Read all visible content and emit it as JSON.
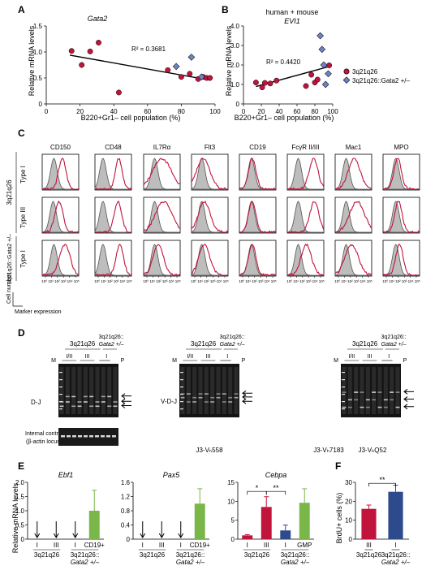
{
  "colors": {
    "red": "#c0143c",
    "blue": "#2c4a8c",
    "green": "#7ab648",
    "gray": "#999999",
    "diamond_blue": "#6d84c4"
  },
  "panelA": {
    "label": "A",
    "title": "Gata2",
    "r2": "R² = 0.3681",
    "ylabel": "Relative mRNA levels",
    "xlabel": "B220+Gr1– cell population (%)",
    "yticks": [
      "0",
      "0.5",
      "1.0",
      "1.5"
    ],
    "xticks": [
      "0",
      "20",
      "40",
      "60",
      "80",
      "100"
    ]
  },
  "panelB": {
    "label": "B",
    "title1": "human + mouse",
    "title2": "EVI1",
    "r2": "R² = 0.4420",
    "ylabel": "Relative mRNA levels",
    "xlabel": "B220+Gr1– cell population (%)",
    "yticks": [
      "0",
      "1.0",
      "2.0",
      "3.0",
      "4.0"
    ],
    "xticks": [
      "0",
      "20",
      "40",
      "60",
      "80",
      "100"
    ],
    "legend": [
      "3q21q26",
      "3q21q26::Gata2 +/–"
    ]
  },
  "panelC": {
    "label": "C",
    "markers": [
      "CD150",
      "CD48",
      "IL7Rα",
      "Flt3",
      "CD19",
      "FcγR II/III",
      "Mac1",
      "MPO"
    ],
    "group1": "3q21q26",
    "group2": "3q21q26::Gata2 +/–",
    "rows": [
      "Type I",
      "Type III",
      "Type I"
    ],
    "axis_y": "Cell number",
    "axis_x": "Marker expression",
    "xticks": [
      "10⁰",
      "10¹",
      "10²",
      "10³",
      "10⁴",
      "10⁵"
    ]
  },
  "panelD": {
    "label": "D",
    "groupA": "3q21q26",
    "groupB1": "3q21q26::",
    "groupB2": "Gata2 +/–",
    "lanes": [
      "M",
      "I/II",
      "III",
      "I",
      "P"
    ],
    "rowlabels": [
      "D-J",
      "V-D-J"
    ],
    "internal1": "Internal control",
    "internal2": "(β-actin locus)",
    "sublabels": [
      "J3-Vₕ558",
      "J3-Vₕ7183",
      "J3-VₕQ52"
    ]
  },
  "panelE": {
    "label": "E",
    "ylabel": "Relative mRNA levels",
    "genes": [
      "Ebf1",
      "Pax5",
      "Cebpa"
    ],
    "group1": "3q21q26",
    "group2": "3q21q26::",
    "group2b": "Gata2 +/–",
    "sig": [
      "*",
      "**"
    ]
  },
  "panelF": {
    "label": "F",
    "ylabel": "BrdU+ cells (%)",
    "yticks": [
      "0",
      "10",
      "20",
      "30"
    ],
    "group1": "3q21q26",
    "group2": "3q21q26::",
    "group2b": "Gata2 +/–",
    "sig": "**"
  },
  "chart_data": [
    {
      "type": "scatter",
      "title": "Gata2",
      "xlabel": "B220+Gr1– cell population (%)",
      "ylabel": "Relative mRNA levels",
      "xlim": [
        0,
        100
      ],
      "ylim": [
        0,
        1.5
      ],
      "series": [
        {
          "name": "3q21q26",
          "x": [
            15,
            21,
            26,
            31,
            43,
            72,
            80,
            85,
            90,
            93,
            95,
            97
          ],
          "y": [
            1.02,
            0.75,
            1.01,
            1.18,
            0.22,
            0.65,
            0.52,
            0.58,
            0.48,
            0.52,
            0.5,
            0.5
          ]
        },
        {
          "name": "3q21q26::Gata2 +/–",
          "x": [
            77,
            86,
            92
          ],
          "y": [
            0.72,
            0.9,
            0.52
          ]
        }
      ],
      "trendline": {
        "slope": -0.0058,
        "intercept": 1.02
      }
    },
    {
      "type": "scatter",
      "title": "EVI1",
      "xlabel": "B220+Gr1– cell population (%)",
      "ylabel": "Relative mRNA levels",
      "xlim": [
        0,
        100
      ],
      "ylim": [
        0,
        4.0
      ],
      "series": [
        {
          "name": "3q21q26",
          "x": [
            14,
            21,
            24,
            30,
            37,
            70,
            76,
            80,
            83,
            96
          ],
          "y": [
            1.1,
            0.85,
            1.08,
            1.05,
            1.2,
            0.92,
            1.5,
            1.1,
            1.25,
            1.98
          ]
        },
        {
          "name": "3q21q26::Gata2 +/–",
          "x": [
            86,
            88,
            90,
            92,
            95
          ],
          "y": [
            3.5,
            2.8,
            2.0,
            1.0,
            1.55
          ]
        }
      ],
      "trendline": {
        "slope": 0.0125,
        "intercept": 0.72
      }
    },
    {
      "type": "bar",
      "title": "Ebf1",
      "categories": [
        "I",
        "III",
        "I",
        "CD19+"
      ],
      "values": [
        0,
        0,
        0,
        1.0
      ],
      "errors": [
        0,
        0,
        0,
        0.72
      ],
      "ylim": [
        0,
        2.0
      ]
    },
    {
      "type": "bar",
      "title": "Pax5",
      "categories": [
        "I",
        "III",
        "I",
        "CD19+"
      ],
      "values": [
        0,
        0,
        0,
        1.0
      ],
      "errors": [
        0,
        0,
        0,
        0.42
      ],
      "ylim": [
        0,
        1.6
      ]
    },
    {
      "type": "bar",
      "title": "Cebpa",
      "categories": [
        "I",
        "III",
        "I",
        "GMP"
      ],
      "values": [
        1.0,
        8.5,
        2.3,
        9.6
      ],
      "errors": [
        0.2,
        2.7,
        1.4,
        3.7
      ],
      "ylim": [
        0,
        15
      ]
    },
    {
      "type": "bar",
      "title": "",
      "ylabel": "BrdU+ cells (%)",
      "categories": [
        "III",
        "I"
      ],
      "values": [
        16,
        25
      ],
      "errors": [
        2.0,
        3.5
      ],
      "ylim": [
        0,
        30
      ]
    }
  ]
}
